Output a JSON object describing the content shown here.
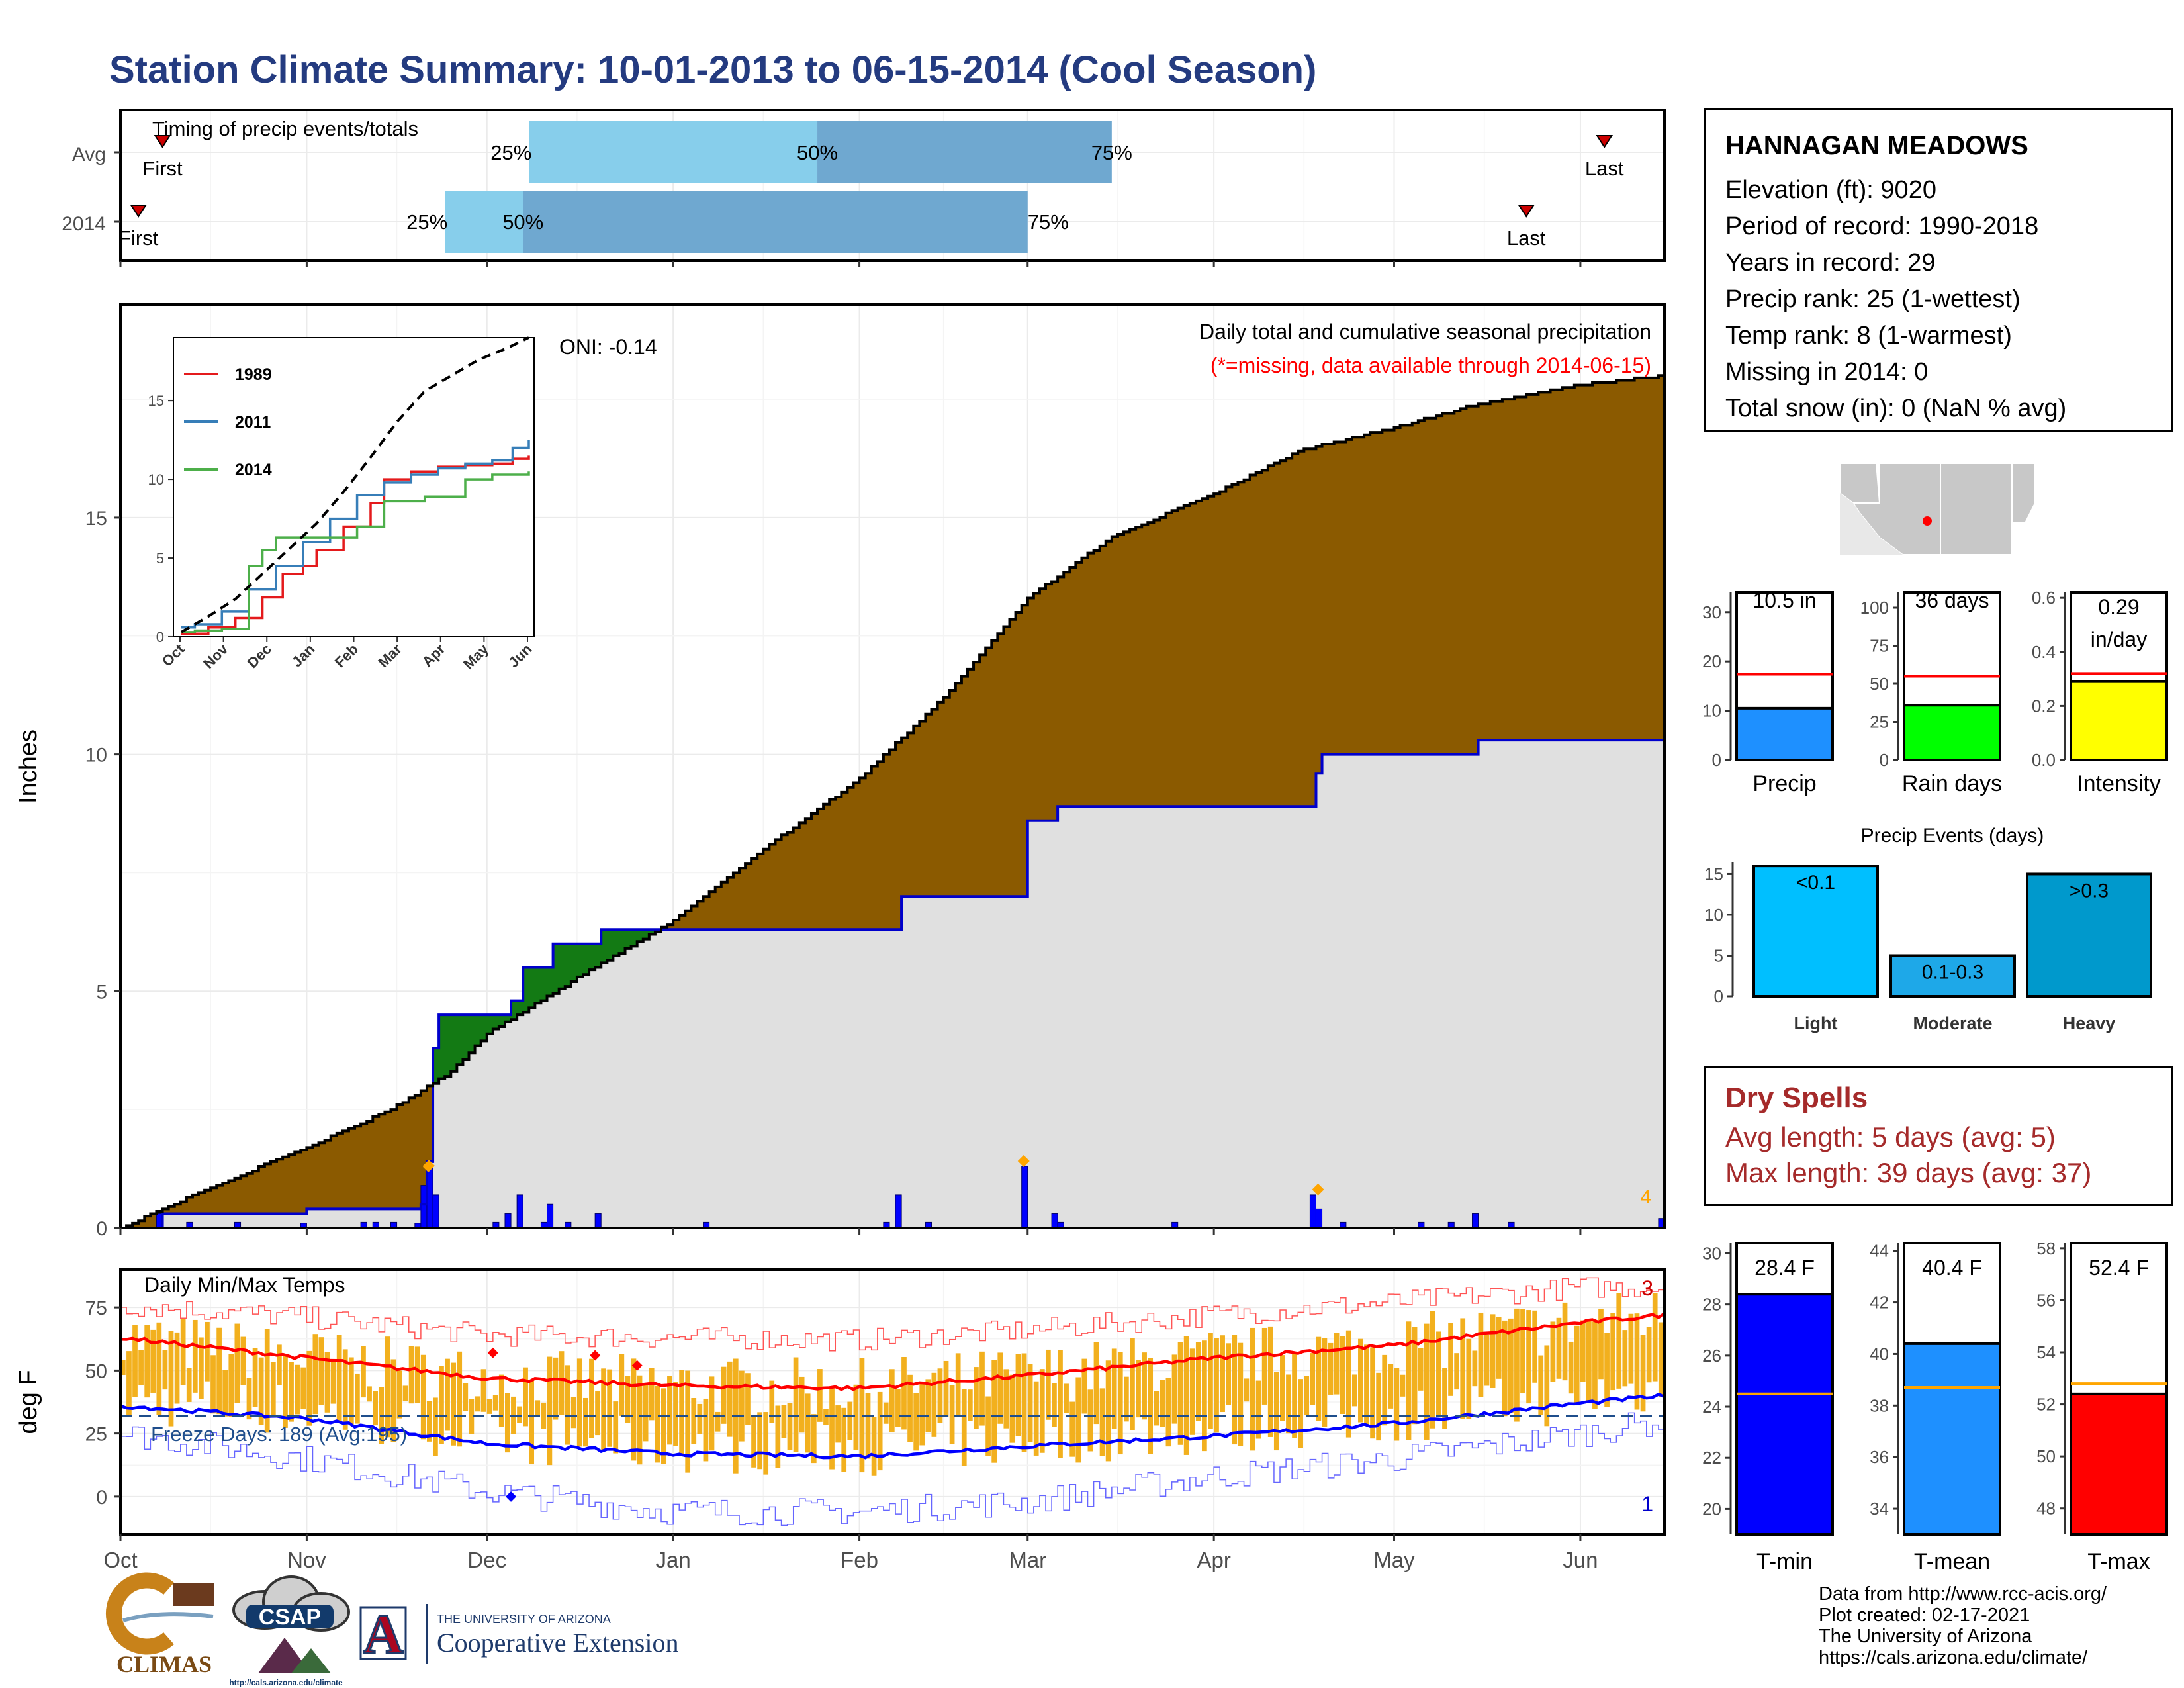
{
  "title": "Station Climate Summary: 10-01-2013 to 06-15-2014 (Cool Season)",
  "colors": {
    "title": "#243b80",
    "cumulative_fill": "#8b5a00",
    "this_year_fill": "#e0e0e0",
    "green_excess": "#137a14",
    "blue_line": "#0000cc",
    "temp_bar": "#f2b01e",
    "red": "#ff0000",
    "orange_marker": "#ffa500",
    "light_blue": "#87ceeb",
    "mid_blue": "#6fa8d0",
    "dry_spell_red": "#a52a2a"
  },
  "timing_panel": {
    "label": "Timing of precip events/totals",
    "rows": [
      {
        "name": "Avg",
        "first_label": "First",
        "first": "2013-10-08",
        "p25_label": "25%",
        "p25": "2013-12-08",
        "p50_label": "50%",
        "p50": "2014-01-25",
        "p75_label": "75%",
        "p75": "2014-03-15",
        "last_label": "Last",
        "last": "2014-06-05"
      },
      {
        "name": "2014",
        "first_label": "First",
        "first": "2013-10-04",
        "p25_label": "25%",
        "p25": "2013-11-24",
        "p50_label": "50%",
        "p50": "2013-12-07",
        "p75_label": "75%",
        "p75": "2014-03-01",
        "last_label": "Last",
        "last": "2014-05-23"
      }
    ]
  },
  "precip_panel": {
    "ylabel": "Inches",
    "caption": "Daily total and cumulative seasonal precipitation",
    "missing_note": "(*=missing, data available through 2014-06-15)",
    "oni": "ONI: -0.14",
    "corner_value": "4",
    "yticks": [
      "0",
      "5",
      "10",
      "15"
    ]
  },
  "temp_panel": {
    "ylabel": "deg F",
    "caption": "Daily Min/Max Temps",
    "freeze_label": "Freeze Days: 189 (Avg:195)",
    "top_value": "3",
    "bottom_value": "1",
    "yticks": [
      "0",
      "25",
      "50",
      "75"
    ]
  },
  "month_labels": [
    "Oct",
    "Nov",
    "Dec",
    "Jan",
    "Feb",
    "Mar",
    "Apr",
    "May",
    "Jun"
  ],
  "inset": {
    "months": [
      "Oct",
      "Nov",
      "Dec",
      "Jan",
      "Feb",
      "Mar",
      "Apr",
      "May",
      "Jun"
    ],
    "yticks": [
      "0",
      "5",
      "10",
      "15"
    ],
    "legend": [
      {
        "name": "1989",
        "color": "#e41a1c"
      },
      {
        "name": "2011",
        "color": "#377eb8"
      },
      {
        "name": "2014",
        "color": "#4daf4a"
      }
    ]
  },
  "station": {
    "name": "HANNAGAN MEADOWS",
    "lines": [
      "Elevation (ft): 9020",
      "Period of record: 1990-2018",
      "Years in record: 29",
      "Precip rank: 25 (1-wettest)",
      "Temp rank: 8 (1-warmest)",
      "Missing in 2014: 0",
      "Total snow (in): 0 (NaN % avg)"
    ]
  },
  "season_bars": [
    {
      "name": "Precip",
      "value_label": "10.5 in",
      "color": "#1e90ff",
      "yticks": [
        "0",
        "10",
        "20",
        "30"
      ]
    },
    {
      "name": "Rain days",
      "value_label": "36 days",
      "color": "#00ff00",
      "yticks": [
        "0",
        "25",
        "50",
        "75",
        "100"
      ]
    },
    {
      "name": "Intensity",
      "value_label": "0.29 in/day",
      "value_label_1": "0.29",
      "value_label_2": "in/day",
      "color": "#ffff00",
      "yticks": [
        "0.0",
        "0.2",
        "0.4",
        "0.6"
      ]
    }
  ],
  "precip_events": {
    "title": "Precip Events (days)",
    "yticks": [
      "0",
      "5",
      "10",
      "15"
    ],
    "bars": [
      {
        "category": "Light",
        "label": "<0.1",
        "color": "#00bfff"
      },
      {
        "category": "Moderate",
        "label": "0.1-0.3",
        "color": "#1ea8e8"
      },
      {
        "category": "Heavy",
        "label": ">0.3",
        "color": "#0099cc"
      }
    ]
  },
  "dry_spells": {
    "title": "Dry Spells",
    "avg_line": "Avg length: 5 days (avg: 5)",
    "max_line": "Max length: 39 days (avg: 37)"
  },
  "temp_bars": [
    {
      "name": "T-min",
      "value_label": "28.4 F",
      "color": "#0000ff",
      "yticks": [
        "20",
        "22",
        "24",
        "26",
        "28",
        "30"
      ]
    },
    {
      "name": "T-mean",
      "value_label": "40.4 F",
      "color": "#1e90ff",
      "yticks": [
        "34",
        "36",
        "38",
        "40",
        "42",
        "44"
      ]
    },
    {
      "name": "T-max",
      "value_label": "52.4 F",
      "color": "#ff0000",
      "yticks": [
        "48",
        "50",
        "52",
        "54",
        "56",
        "58"
      ]
    }
  ],
  "footer": {
    "lines": [
      "Data from http://www.rcc-acis.org/",
      "Plot created: 02-17-2021",
      "The University of Arizona",
      "https://cals.arizona.edu/climate/"
    ],
    "logo_climas": "CLIMAS",
    "logo_csap": "CSAP",
    "logo_csap_url": "http://cals.arizona.edu/climate",
    "logo_ua_letter": "A",
    "ua_small": "THE UNIVERSITY OF ARIZONA",
    "ua_big": "Cooperative Extension"
  },
  "chart_data": [
    {
      "type": "area",
      "name": "cumulative precipitation",
      "xlabel": "",
      "ylabel": "Inches",
      "ylim": [
        0,
        19.5
      ],
      "xrange": [
        "2013-10-01",
        "2014-06-15"
      ],
      "cumulative_avg": {
        "x": [
          "2013-10-01",
          "2013-10-15",
          "2013-11-01",
          "2013-11-15",
          "2013-11-25",
          "2013-12-01",
          "2013-12-15",
          "2014-01-01",
          "2014-01-15",
          "2014-02-01",
          "2014-02-15",
          "2014-03-01",
          "2014-03-15",
          "2014-04-01",
          "2014-04-15",
          "2014-05-01",
          "2014-05-15",
          "2014-06-01",
          "2014-06-15"
        ],
        "y": [
          0.0,
          0.8,
          1.7,
          2.5,
          3.3,
          4.1,
          5.2,
          6.5,
          7.9,
          9.5,
          11.2,
          13.3,
          14.6,
          15.5,
          16.4,
          16.9,
          17.4,
          17.8,
          18.0
        ]
      },
      "cumulative_2014": {
        "x": [
          "2013-10-01",
          "2013-10-08",
          "2013-11-01",
          "2013-11-20",
          "2013-11-21",
          "2013-11-22",
          "2013-11-23",
          "2013-12-01",
          "2013-12-05",
          "2013-12-07",
          "2013-12-12",
          "2013-12-20",
          "2014-01-01",
          "2014-02-01",
          "2014-02-08",
          "2014-02-28",
          "2014-03-01",
          "2014-03-06",
          "2014-04-01",
          "2014-04-18",
          "2014-04-19",
          "2014-05-01",
          "2014-05-15",
          "2014-06-15"
        ],
        "y": [
          0.0,
          0.3,
          0.4,
          0.5,
          1.4,
          3.8,
          4.5,
          4.5,
          4.8,
          5.5,
          6.0,
          6.3,
          6.3,
          6.3,
          7.0,
          7.0,
          8.6,
          8.9,
          8.9,
          9.6,
          10.0,
          10.0,
          10.3,
          10.5
        ]
      },
      "daily_precip_peaks": [
        {
          "x": "2013-11-22",
          "y": 1.2
        },
        {
          "x": "2014-03-01",
          "y": 1.3
        },
        {
          "x": "2014-04-19",
          "y": 0.7
        }
      ]
    },
    {
      "type": "line",
      "name": "daily temperatures",
      "ylabel": "deg F",
      "ylim": [
        -15,
        90
      ],
      "freeze_threshold": 32,
      "avg_tmax": {
        "x": [
          "2013-10-01",
          "2013-11-01",
          "2013-12-01",
          "2014-01-01",
          "2014-02-01",
          "2014-03-01",
          "2014-04-01",
          "2014-05-01",
          "2014-06-01",
          "2014-06-15"
        ],
        "y": [
          63,
          55,
          47,
          44,
          43,
          48,
          55,
          60,
          69,
          72
        ]
      },
      "avg_tmin": {
        "x": [
          "2013-10-01",
          "2013-11-01",
          "2013-12-01",
          "2014-01-01",
          "2014-02-01",
          "2014-03-01",
          "2014-04-01",
          "2014-05-01",
          "2014-06-01",
          "2014-06-15"
        ],
        "y": [
          36,
          31,
          21,
          17,
          16,
          20,
          24,
          29,
          37,
          40
        ]
      },
      "record_high": {
        "x": [
          "2013-10-01",
          "2013-11-01",
          "2013-12-01",
          "2014-01-01",
          "2014-02-01",
          "2014-03-01",
          "2014-04-01",
          "2014-05-01",
          "2014-06-01",
          "2014-06-15"
        ],
        "y": [
          76,
          71,
          64,
          63,
          62,
          66,
          72,
          77,
          83,
          83
        ]
      },
      "record_low": {
        "x": [
          "2013-10-01",
          "2013-11-01",
          "2013-12-01",
          "2014-01-01",
          "2014-02-01",
          "2014-03-01",
          "2014-04-01",
          "2014-05-01",
          "2014-06-01",
          "2014-06-15"
        ],
        "y": [
          25,
          15,
          2,
          -6,
          -6,
          -2,
          8,
          15,
          25,
          30
        ]
      }
    },
    {
      "type": "line",
      "name": "inset: cumulative precipitation comparison",
      "ylim": [
        0,
        19
      ],
      "series": [
        {
          "name": "1989",
          "x": [
            0,
            20,
            40,
            60,
            75,
            90,
            100,
            120,
            140,
            150,
            170,
            190,
            210,
            230,
            245,
            257
          ],
          "y": [
            0.2,
            0.6,
            1.2,
            2.5,
            4.0,
            4.5,
            5.5,
            7.0,
            8.5,
            10.0,
            10.5,
            10.8,
            10.9,
            11.0,
            11.3,
            11.5
          ]
        },
        {
          "name": "2011",
          "x": [
            0,
            10,
            30,
            50,
            70,
            90,
            110,
            130,
            150,
            170,
            190,
            210,
            230,
            245,
            257
          ],
          "y": [
            0.6,
            0.8,
            1.6,
            3.0,
            4.5,
            6.0,
            7.5,
            9.0,
            9.8,
            10.3,
            10.7,
            11.0,
            11.2,
            12.0,
            12.5
          ]
        },
        {
          "name": "2014",
          "x": [
            0,
            10,
            30,
            50,
            60,
            70,
            85,
            100,
            130,
            150,
            180,
            210,
            230,
            257
          ],
          "y": [
            0.3,
            0.4,
            0.5,
            4.5,
            5.5,
            6.3,
            6.3,
            6.3,
            7.0,
            8.6,
            8.9,
            10.0,
            10.3,
            10.5
          ]
        },
        {
          "name": "average",
          "x": [
            0,
            20,
            40,
            60,
            80,
            100,
            120,
            140,
            160,
            180,
            200,
            220,
            240,
            257
          ],
          "y": [
            0.3,
            1.3,
            2.4,
            4.0,
            5.6,
            7.2,
            9.2,
            11.4,
            13.7,
            15.6,
            16.6,
            17.6,
            18.3,
            19.0
          ]
        }
      ]
    },
    {
      "type": "bar",
      "name": "season totals",
      "categories": [
        "Precip",
        "Rain days",
        "Intensity"
      ],
      "values": [
        10.5,
        36,
        0.29
      ],
      "averages": [
        17.4,
        55,
        0.32
      ],
      "ylims": [
        [
          0,
          34
        ],
        [
          0,
          110
        ],
        [
          0,
          0.62
        ]
      ]
    },
    {
      "type": "bar",
      "name": "Precip Events (days)",
      "categories": [
        "Light",
        "Moderate",
        "Heavy"
      ],
      "values": [
        16,
        5,
        15
      ],
      "ylim": [
        0,
        16.5
      ]
    },
    {
      "type": "bar",
      "name": "season temperatures",
      "categories": [
        "T-min",
        "T-mean",
        "T-max"
      ],
      "values": [
        28.4,
        40.4,
        52.4
      ],
      "averages": [
        24.5,
        38.7,
        52.8
      ],
      "ylims": [
        [
          19,
          30.4
        ],
        [
          33,
          44.3
        ],
        [
          47,
          58.2
        ]
      ]
    }
  ]
}
